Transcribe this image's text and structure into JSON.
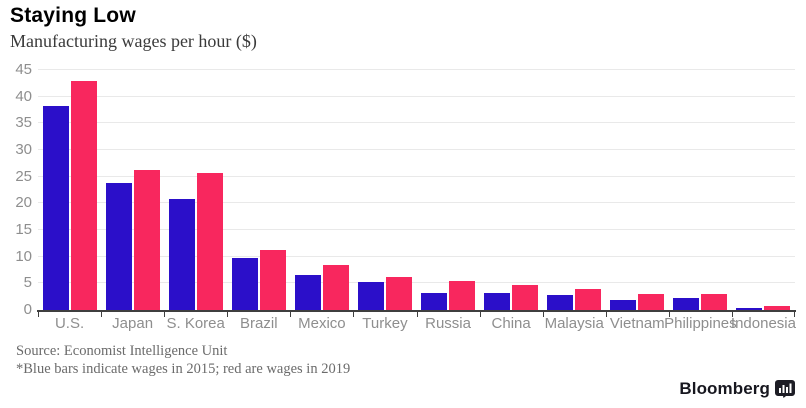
{
  "header": {
    "title": "Staying Low",
    "subtitle": "Manufacturing wages per hour ($)"
  },
  "chart_data": {
    "type": "bar",
    "title": "Staying Low",
    "subtitle": "Manufacturing wages per hour ($)",
    "categories": [
      "U.S.",
      "Japan",
      "S. Korea",
      "Brazil",
      "Mexico",
      "Turkey",
      "Russia",
      "China",
      "Malaysia",
      "Vietnam",
      "Philippines",
      "Indonesia"
    ],
    "series": [
      {
        "name": "2015",
        "color": "#2b0fc9",
        "values": [
          38.2,
          23.8,
          20.8,
          9.7,
          6.6,
          5.2,
          3.2,
          3.1,
          2.8,
          1.9,
          2.3,
          0.4
        ]
      },
      {
        "name": "2019",
        "color": "#f8275e",
        "values": [
          42.9,
          26.3,
          25.7,
          11.2,
          8.5,
          6.1,
          5.5,
          4.7,
          3.9,
          3.0,
          3.0,
          0.7
        ]
      }
    ],
    "xlabel": "",
    "ylabel": "",
    "ylim": [
      0,
      45
    ],
    "yticks": [
      0,
      5,
      10,
      15,
      20,
      25,
      30,
      35,
      40,
      45
    ],
    "grid": true,
    "legend_position": "none",
    "colors": {
      "gridline": "#e9e9e9",
      "axis": "#3f3f3f",
      "tick_label": "#8e8e8e"
    }
  },
  "footer": {
    "source": "Source: Economist Intelligence Unit",
    "note": "*Blue bars indicate wages in 2015; red are wages in 2019",
    "brand": "Bloomberg"
  }
}
